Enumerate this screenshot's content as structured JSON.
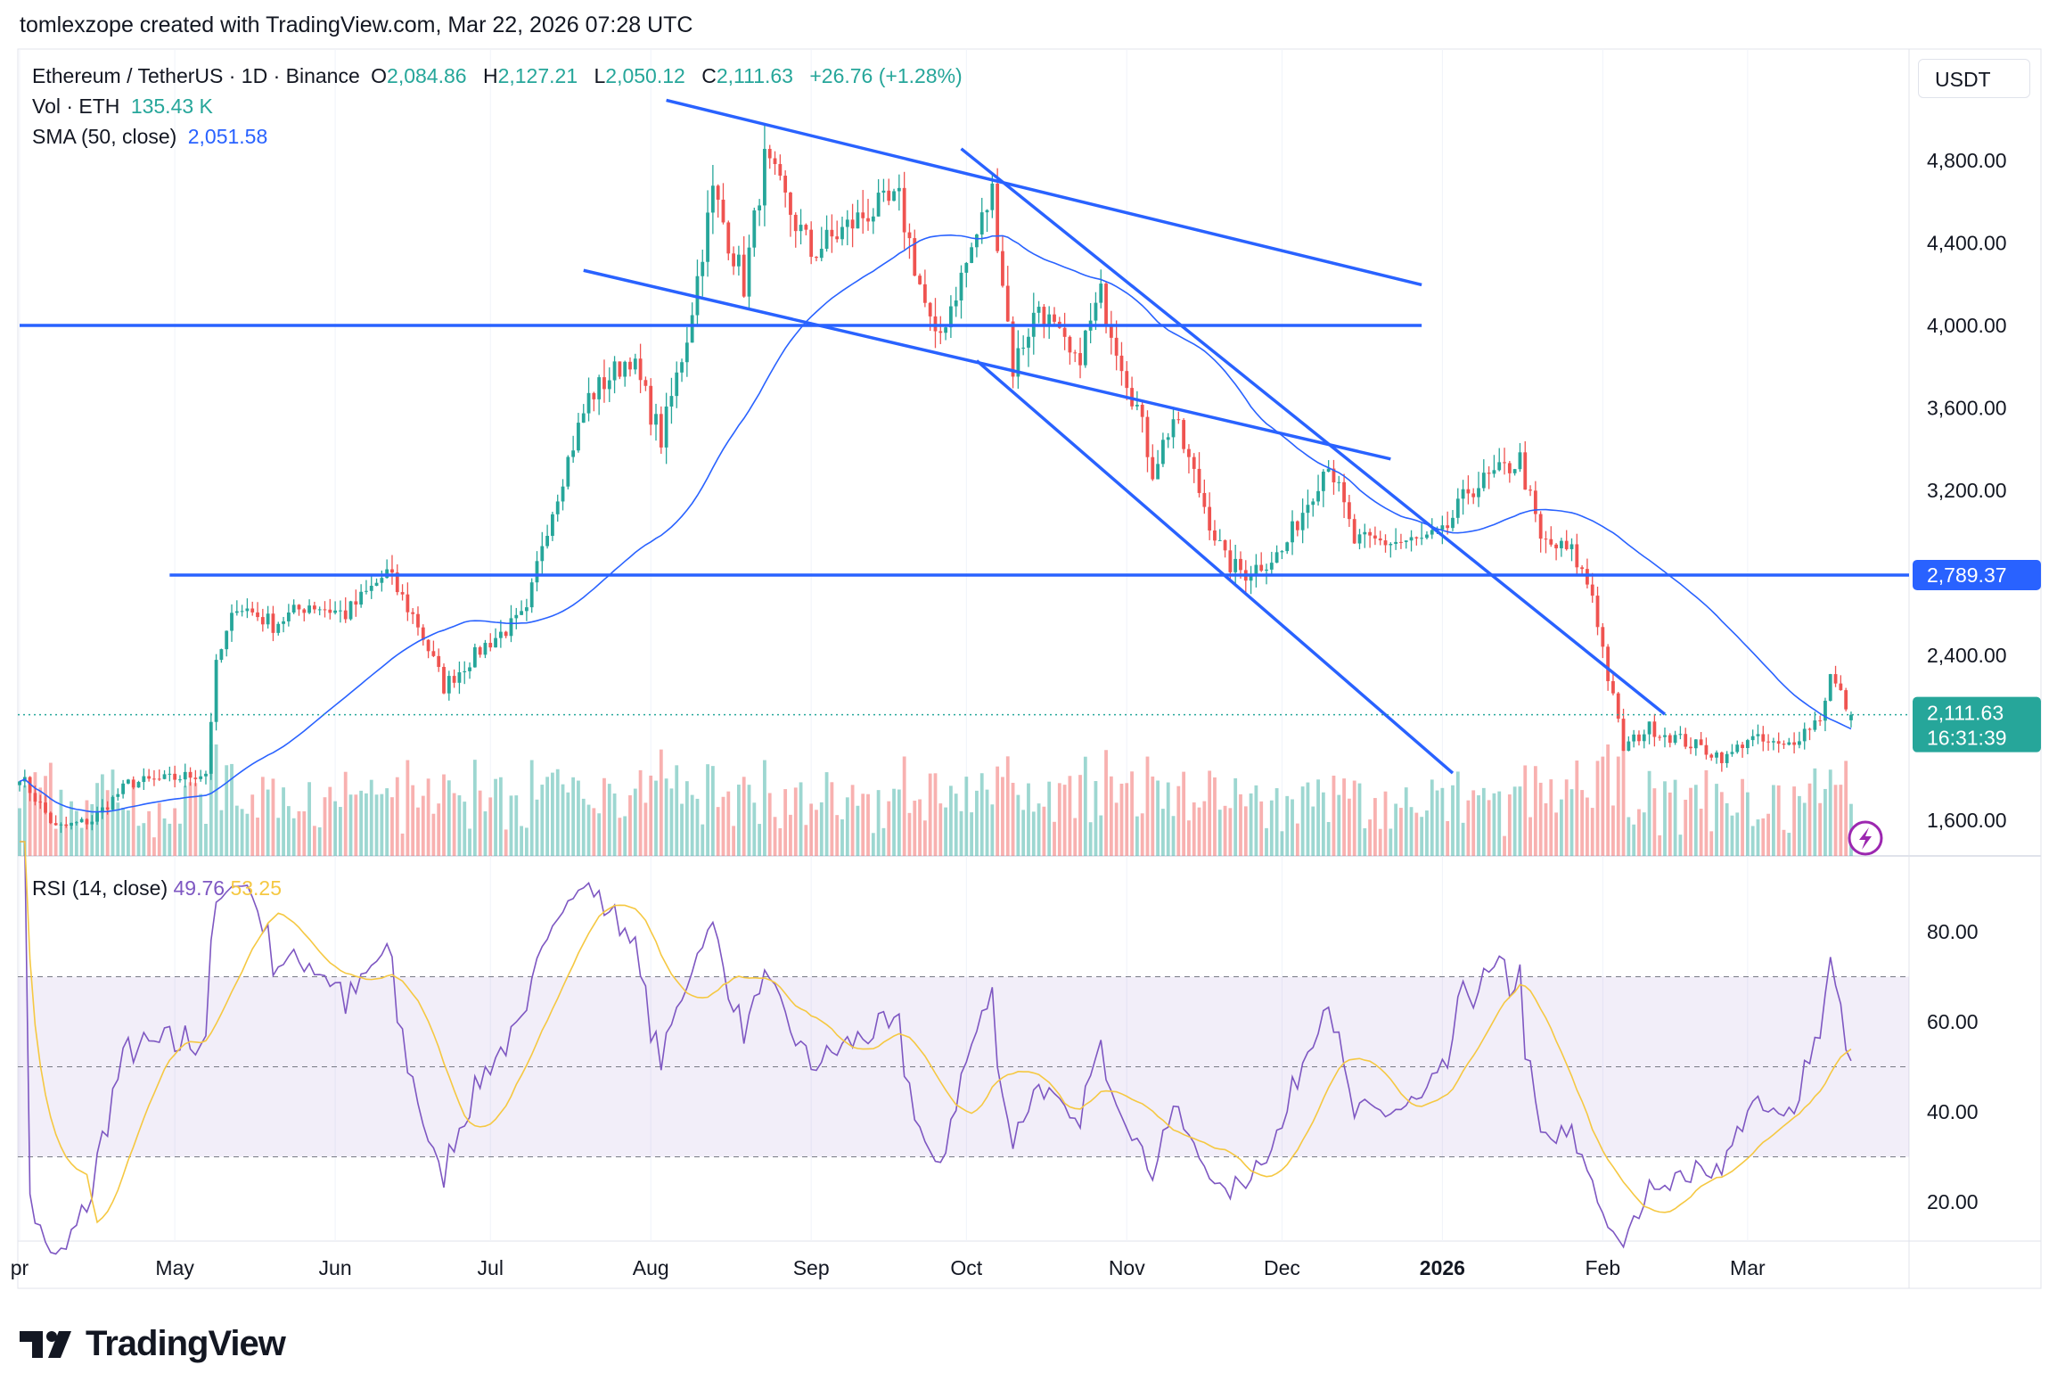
{
  "caption": "tomlexzope created with TradingView.com, Mar 22, 2026 07:28 UTC",
  "legend": {
    "symbol": "Ethereum / TetherUS · 1D · Binance",
    "o_label": "O",
    "open": "2,084.86",
    "h_label": "H",
    "high": "2,127.21",
    "l_label": "L",
    "low": "2,050.12",
    "c_label": "C",
    "close": "2,111.63",
    "change": "+26.76 (+1.28%)",
    "vol_label": "Vol · ETH",
    "vol_value": "135.43 K",
    "sma_label": "SMA (50, close)",
    "sma_value": "2,051.58",
    "rsi_label": "RSI (14, close)",
    "rsi_value": "49.76",
    "rsi_ma_value": "53.25"
  },
  "currency": "USDT",
  "price_label": "2,111.63",
  "countdown": "16:31:39",
  "level_label": "2,789.37",
  "brand": "TradingView",
  "colors": {
    "up": "#26a69a",
    "down": "#ef5350",
    "line": "#2962ff",
    "sma": "#2962ff",
    "rsi": "#7e57c2",
    "rsi_ma": "#f5c842",
    "band": "#7e57c2"
  },
  "chart_data": [
    {
      "type": "candlestick",
      "title": "Ethereum / TetherUS · 1D · Binance",
      "ylim": [
        1500,
        5100
      ],
      "yticks": [
        "4,800.00",
        "4,400.00",
        "4,000.00",
        "3,600.00",
        "3,200.00",
        "2,400.00",
        "1,600.00"
      ],
      "ytick_values": [
        4800,
        4400,
        4000,
        3600,
        3200,
        2400,
        1600
      ],
      "xticks": [
        {
          "label": "pr",
          "date": "2025-04-01"
        },
        {
          "label": "May",
          "date": "2025-05-01"
        },
        {
          "label": "Jun",
          "date": "2025-06-01"
        },
        {
          "label": "Jul",
          "date": "2025-07-01"
        },
        {
          "label": "Aug",
          "date": "2025-08-01"
        },
        {
          "label": "Sep",
          "date": "2025-09-01"
        },
        {
          "label": "Oct",
          "date": "2025-10-01"
        },
        {
          "label": "Nov",
          "date": "2025-11-01"
        },
        {
          "label": "Dec",
          "date": "2025-12-01"
        },
        {
          "label": "2026",
          "date": "2026-01-01"
        },
        {
          "label": "Feb",
          "date": "2026-02-01"
        },
        {
          "label": "Mar",
          "date": "2026-03-01"
        }
      ],
      "close_approx": [
        [
          "2025-04-01",
          1820
        ],
        [
          "2025-04-08",
          1560
        ],
        [
          "2025-04-15",
          1600
        ],
        [
          "2025-04-22",
          1780
        ],
        [
          "2025-04-30",
          1800
        ],
        [
          "2025-05-07",
          1830
        ],
        [
          "2025-05-09",
          2350
        ],
        [
          "2025-05-13",
          2650
        ],
        [
          "2025-05-20",
          2550
        ],
        [
          "2025-05-27",
          2650
        ],
        [
          "2025-06-03",
          2600
        ],
        [
          "2025-06-11",
          2800
        ],
        [
          "2025-06-17",
          2550
        ],
        [
          "2025-06-22",
          2250
        ],
        [
          "2025-06-30",
          2450
        ],
        [
          "2025-07-08",
          2600
        ],
        [
          "2025-07-11",
          2950
        ],
        [
          "2025-07-16",
          3350
        ],
        [
          "2025-07-20",
          3650
        ],
        [
          "2025-07-28",
          3850
        ],
        [
          "2025-08-03",
          3450
        ],
        [
          "2025-08-08",
          3950
        ],
        [
          "2025-08-13",
          4650
        ],
        [
          "2025-08-19",
          4200
        ],
        [
          "2025-08-23",
          4800
        ],
        [
          "2025-09-01",
          4350
        ],
        [
          "2025-09-12",
          4550
        ],
        [
          "2025-09-18",
          4600
        ],
        [
          "2025-09-25",
          3900
        ],
        [
          "2025-10-01",
          4300
        ],
        [
          "2025-10-06",
          4650
        ],
        [
          "2025-10-10",
          3800
        ],
        [
          "2025-10-15",
          4100
        ],
        [
          "2025-10-22",
          3800
        ],
        [
          "2025-10-27",
          4150
        ],
        [
          "2025-11-03",
          3600
        ],
        [
          "2025-11-06",
          3300
        ],
        [
          "2025-11-10",
          3550
        ],
        [
          "2025-11-20",
          2850
        ],
        [
          "2025-11-24",
          2800
        ],
        [
          "2025-12-01",
          2900
        ],
        [
          "2025-12-05",
          3100
        ],
        [
          "2025-12-10",
          3350
        ],
        [
          "2025-12-15",
          2950
        ],
        [
          "2025-12-27",
          2950
        ],
        [
          "2026-01-01",
          2980
        ],
        [
          "2026-01-06",
          3200
        ],
        [
          "2026-01-13",
          3300
        ],
        [
          "2026-01-16",
          3350
        ],
        [
          "2026-01-20",
          2950
        ],
        [
          "2026-01-26",
          2900
        ],
        [
          "2026-01-30",
          2700
        ],
        [
          "2026-02-02",
          2300
        ],
        [
          "2026-02-05",
          1950
        ],
        [
          "2026-02-10",
          2050
        ],
        [
          "2026-02-20",
          1950
        ],
        [
          "2026-02-25",
          1900
        ],
        [
          "2026-03-01",
          2000
        ],
        [
          "2026-03-08",
          1950
        ],
        [
          "2026-03-15",
          2100
        ],
        [
          "2026-03-17",
          2300
        ],
        [
          "2026-03-21",
          2111.63
        ]
      ],
      "last_candle": {
        "open": 2084.86,
        "high": 2127.21,
        "low": 2050.12,
        "close": 2111.63
      },
      "sma_period": 50,
      "current_price": 2111.63,
      "lines": [
        {
          "kind": "horizontal",
          "price": 4000,
          "from": "2025-04-01",
          "to": "2025-12-28"
        },
        {
          "kind": "horizontal",
          "price": 2789.37,
          "from": "2025-04-30",
          "to": "extend"
        },
        {
          "kind": "trend",
          "p1": [
            "2025-08-04",
            5092
          ],
          "p2": [
            "2025-12-28",
            4197
          ]
        },
        {
          "kind": "trend",
          "p1": [
            "2025-07-19",
            4267
          ],
          "p2": [
            "2025-12-22",
            3352
          ]
        },
        {
          "kind": "trend",
          "p1": [
            "2025-09-30",
            4857
          ],
          "p2": [
            "2026-02-13",
            2114
          ]
        },
        {
          "kind": "trend",
          "p1": [
            "2025-10-03",
            3829
          ],
          "p2": [
            "2026-01-03",
            1829
          ]
        }
      ]
    },
    {
      "type": "line",
      "title": "RSI (14, close)",
      "ylim": [
        15,
        90
      ],
      "yticks": [
        "80.00",
        "60.00",
        "40.00",
        "20.00"
      ],
      "ytick_values": [
        80,
        60,
        40,
        20
      ],
      "bands": {
        "upper": 70,
        "middle": 50,
        "lower": 30
      },
      "period": 14,
      "series": [
        {
          "name": "RSI",
          "last": 49.76
        },
        {
          "name": "RSI MA",
          "last": 53.25
        }
      ]
    }
  ]
}
